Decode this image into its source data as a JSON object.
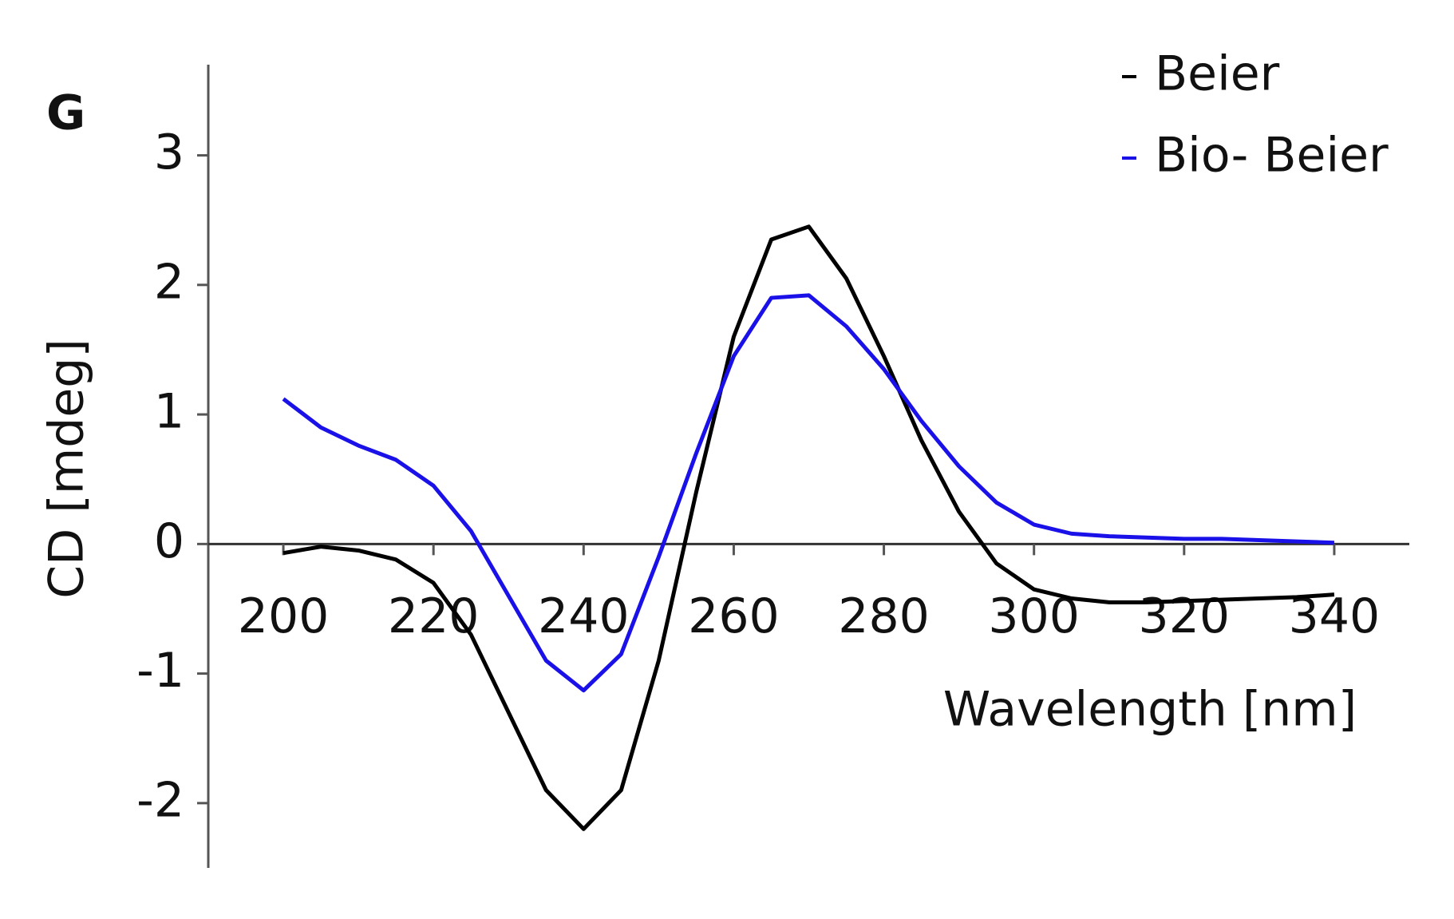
{
  "chart_data": {
    "type": "line",
    "panel_label": "G",
    "x_label": "Wavelength [nm]",
    "y_label": "CD [mdeg]",
    "x": [
      200,
      205,
      210,
      215,
      220,
      225,
      230,
      235,
      240,
      245,
      250,
      255,
      260,
      265,
      270,
      275,
      280,
      285,
      290,
      295,
      300,
      305,
      310,
      315,
      320,
      325,
      330,
      335,
      340
    ],
    "series": [
      {
        "name": "Beier",
        "color": "#000000",
        "values": [
          -0.07,
          -0.02,
          -0.05,
          -0.12,
          -0.3,
          -0.7,
          -1.3,
          -1.9,
          -2.2,
          -1.9,
          -0.9,
          0.4,
          1.6,
          2.35,
          2.45,
          2.05,
          1.45,
          0.8,
          0.25,
          -0.15,
          -0.35,
          -0.42,
          -0.45,
          -0.45,
          -0.44,
          -0.43,
          -0.42,
          -0.41,
          -0.39
        ]
      },
      {
        "name": "Bio- Beier",
        "color": "#1a10e8",
        "values": [
          1.12,
          0.9,
          0.76,
          0.65,
          0.45,
          0.1,
          -0.4,
          -0.9,
          -1.13,
          -0.85,
          -0.1,
          0.7,
          1.45,
          1.9,
          1.92,
          1.68,
          1.35,
          0.95,
          0.6,
          0.32,
          0.15,
          0.08,
          0.06,
          0.05,
          0.04,
          0.04,
          0.03,
          0.02,
          0.01
        ]
      }
    ],
    "xlim": [
      190,
      350
    ],
    "ylim": [
      -2.5,
      3.7
    ],
    "xticks": [
      200,
      220,
      240,
      260,
      280,
      300,
      320,
      340
    ],
    "yticks": [
      -2,
      -1,
      0,
      1,
      2,
      3
    ],
    "legend": "upper right"
  }
}
